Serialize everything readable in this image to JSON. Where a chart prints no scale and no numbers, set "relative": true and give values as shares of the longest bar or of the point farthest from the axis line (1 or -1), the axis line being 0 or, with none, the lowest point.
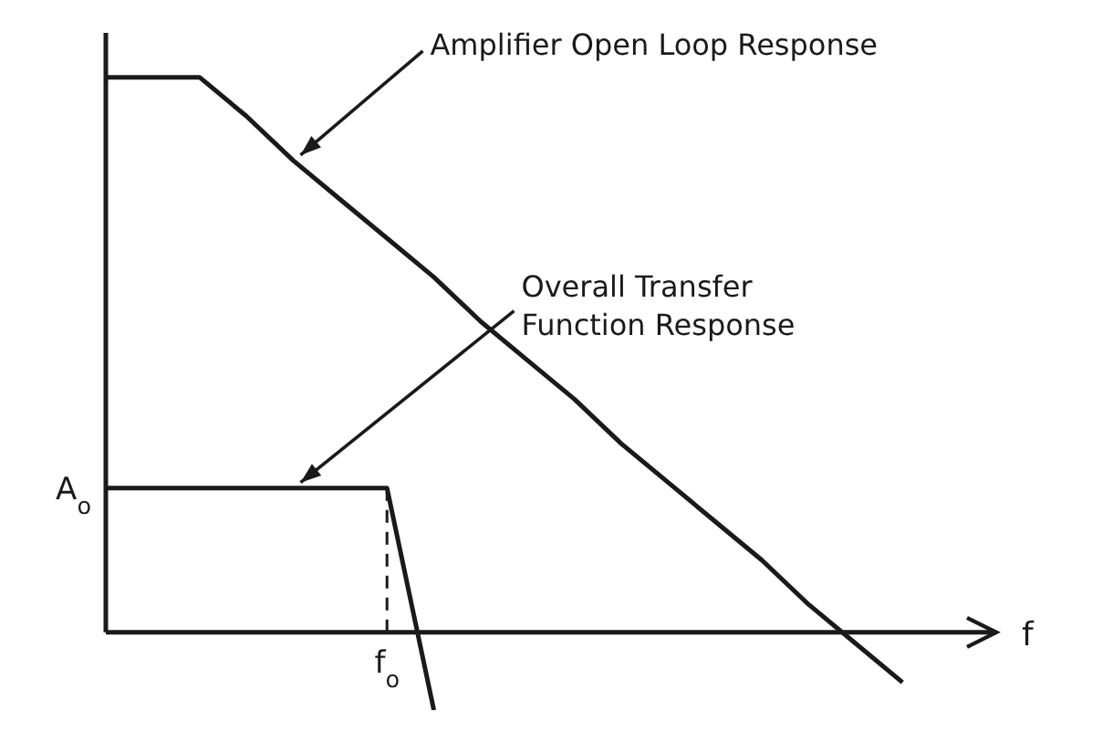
{
  "chart_data": {
    "type": "line",
    "relative": true,
    "marker": "none",
    "line_style": "solid",
    "categories": [
      null,
      null,
      null,
      null,
      null,
      null,
      null,
      null,
      null,
      null,
      null,
      null,
      null,
      null,
      null,
      null,
      null,
      null,
      null,
      null
    ],
    "series": [
      {
        "color": "#1a1a1a",
        "values": [
          1,
          1,
          1,
          0.93,
          0.85,
          0.78,
          0.71,
          0.64,
          0.56,
          0.49,
          0.42,
          0.34,
          0.27,
          0.2,
          0.13,
          0.05,
          -0.02,
          -0.09,
          null,
          null
        ]
      },
      {
        "color": "#1a1a1a",
        "values": [
          0.26,
          0.26,
          0.26,
          0.26,
          0.26,
          0.26,
          0.26,
          -0.14,
          null,
          null,
          null,
          null,
          null,
          null,
          null,
          null,
          null,
          null,
          null,
          null
        ]
      }
    ],
    "annotations": [
      "Amplifier Open Loop Response",
      "Overall Transfer Function Response",
      "A$_{o}$",
      "f$_{o}$",
      "f"
    ]
  }
}
